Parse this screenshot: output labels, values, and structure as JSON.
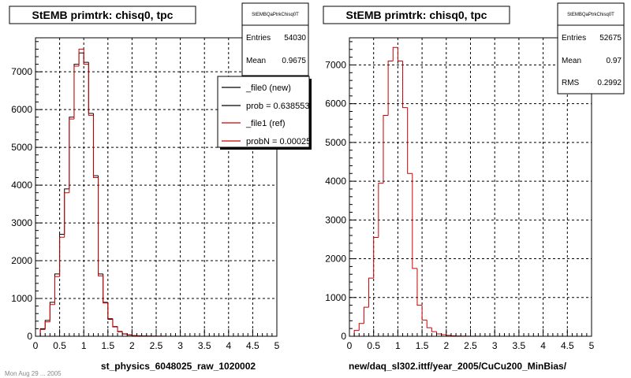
{
  "chart_data": [
    {
      "type": "histogram",
      "title": "StEMB primtrk: chisq0, tpc",
      "xlabel": "st_physics_6048025_raw_1020002",
      "xlim": [
        0,
        5
      ],
      "ylim": [
        0,
        7900
      ],
      "x_ticks": [
        "0",
        "0.5",
        "1",
        "1.5",
        "2",
        "2.5",
        "3",
        "3.5",
        "4",
        "4.5",
        "5"
      ],
      "y_ticks": [
        "0",
        "1000",
        "2000",
        "3000",
        "4000",
        "5000",
        "6000",
        "7000"
      ],
      "grid": true,
      "bin_width": 0.1,
      "bin_edges_start": 0,
      "series": [
        {
          "name": "_file0 (new)",
          "color": "#000000",
          "values": [
            0,
            200,
            420,
            900,
            1650,
            2700,
            3900,
            5800,
            7200,
            7500,
            7250,
            5900,
            4250,
            1650,
            900,
            450,
            250,
            120,
            60,
            35,
            20,
            12,
            8,
            5,
            3,
            2,
            2,
            1,
            1,
            1,
            1,
            0,
            0,
            0,
            0,
            0,
            0,
            0,
            0,
            0,
            0,
            0,
            0,
            0,
            0,
            0,
            0,
            0,
            0,
            0
          ]
        },
        {
          "name": "_file1 (ref)",
          "color": "#cc0000",
          "values": [
            0,
            180,
            380,
            840,
            1580,
            2620,
            3800,
            5750,
            7150,
            7600,
            7200,
            5850,
            4200,
            1600,
            880,
            470,
            260,
            130,
            65,
            40,
            22,
            14,
            9,
            6,
            4,
            3,
            2,
            1,
            1,
            1,
            1,
            0,
            0,
            0,
            0,
            0,
            0,
            0,
            0,
            0,
            0,
            0,
            0,
            0,
            0,
            0,
            0,
            0,
            0,
            0
          ]
        }
      ],
      "stats": {
        "title": "StEMBQaPtrkChisq0T",
        "entries_label": "Entries",
        "entries": "54030",
        "mean_label": "Mean",
        "mean": "0.9675"
      },
      "legend": {
        "placement": "top-right",
        "entries": [
          {
            "text": "_file0 (new)",
            "color": "#000000"
          },
          {
            "text": "prob = 0.638553",
            "color": "#000000"
          },
          {
            "text": "_file1 (ref)",
            "color": "#cc0000"
          },
          {
            "text": "probN = 0.00025",
            "color": "#cc0000"
          }
        ]
      }
    },
    {
      "type": "histogram",
      "title": "StEMB primtrk: chisq0, tpc",
      "xlabel": "new/daq_sl302.ittf/year_2005/CuCu200_MinBias/",
      "xlim": [
        0,
        5
      ],
      "ylim": [
        0,
        7700
      ],
      "x_ticks": [
        "0",
        "0.5",
        "1",
        "1.5",
        "2",
        "2.5",
        "3",
        "3.5",
        "4",
        "4.5",
        "5"
      ],
      "y_ticks": [
        "0",
        "1000",
        "2000",
        "3000",
        "4000",
        "5000",
        "6000",
        "7000"
      ],
      "grid": true,
      "bin_width": 0.1,
      "bin_edges_start": 0,
      "series": [
        {
          "name": "",
          "color": "#cc0000",
          "values": [
            0,
            150,
            330,
            750,
            1500,
            2550,
            3950,
            5700,
            7100,
            7450,
            7100,
            5900,
            4200,
            1750,
            800,
            420,
            220,
            120,
            60,
            40,
            22,
            13,
            8,
            5,
            3,
            2,
            2,
            1,
            1,
            1,
            1,
            0,
            0,
            0,
            0,
            0,
            0,
            0,
            0,
            0,
            0,
            0,
            0,
            0,
            0,
            0,
            0,
            0,
            0,
            0
          ]
        }
      ],
      "stats": {
        "title": "StEMBQaPtrkChisq0T",
        "entries_label": "Entries",
        "entries": "52675",
        "mean_label": "Mean",
        "mean": "0.97",
        "rms_label": "RMS",
        "rms": "0.2992"
      }
    }
  ],
  "footer_fragment": "Mon Aug 29 ... 2005"
}
